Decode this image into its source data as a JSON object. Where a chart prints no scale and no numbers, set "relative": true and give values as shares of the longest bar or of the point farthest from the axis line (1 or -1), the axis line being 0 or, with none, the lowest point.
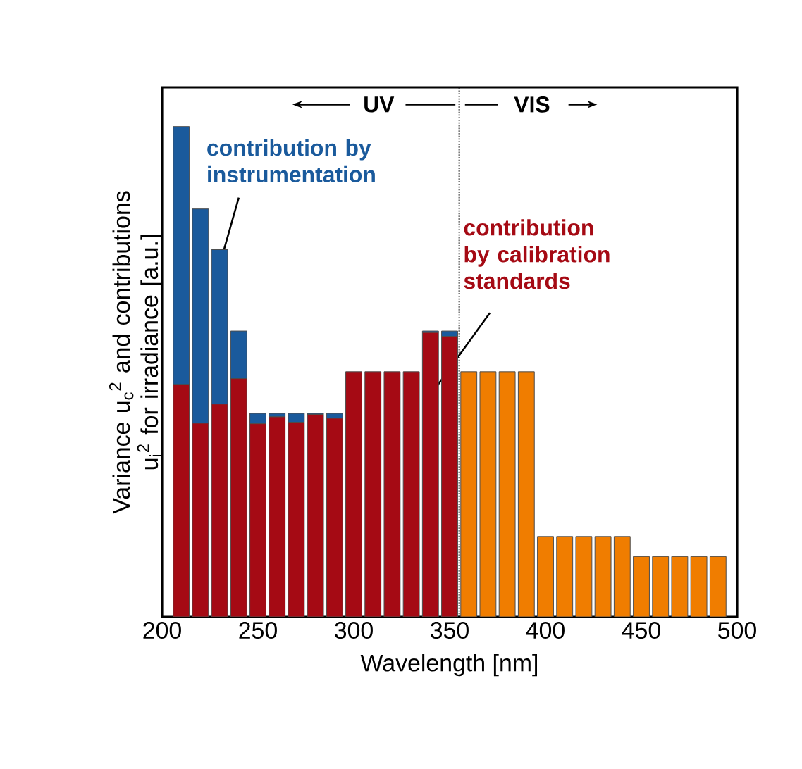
{
  "chart_data": {
    "type": "bar",
    "stacked": true,
    "relative": true,
    "xlabel": "Wavelength [nm]",
    "ylabel": "Variance u$_{c}$$^{2}$ and contributions u$_{i}$$^{2}$ for irradiance [a.u.]",
    "xlim": [
      200,
      500
    ],
    "xticks": [
      200,
      250,
      300,
      350,
      400,
      450,
      500
    ],
    "grid": false,
    "x": [
      210,
      220,
      230,
      240,
      250,
      260,
      270,
      280,
      290,
      300,
      310,
      320,
      330,
      340,
      350,
      360,
      370,
      380,
      390,
      400,
      410,
      420,
      430,
      440,
      450,
      460,
      470,
      480,
      490
    ],
    "series": [
      {
        "name": "contribution by calibration standards",
        "color": "#a50a14",
        "values": [
          0.474,
          0.395,
          0.434,
          0.486,
          0.394,
          0.408,
          0.397,
          0.413,
          0.405,
          0.5,
          0.5,
          0.5,
          0.5,
          0.58,
          0.572,
          null,
          null,
          null,
          null,
          null,
          null,
          null,
          null,
          null,
          null,
          null,
          null,
          null,
          null
        ]
      },
      {
        "name": "contribution by instrumentation",
        "color": "#1a5a9c",
        "values": [
          0.526,
          0.437,
          0.315,
          0.097,
          0.021,
          0.007,
          0.018,
          0.002,
          0.01,
          0,
          0,
          0,
          0,
          0.003,
          0.011,
          null,
          null,
          null,
          null,
          null,
          null,
          null,
          null,
          null,
          null,
          null,
          null,
          null,
          null
        ]
      },
      {
        "color": "#f07d00",
        "values": [
          null,
          null,
          null,
          null,
          null,
          null,
          null,
          null,
          null,
          null,
          null,
          null,
          null,
          null,
          null,
          0.5,
          0.5,
          0.5,
          0.5,
          0.164,
          0.164,
          0.164,
          0.164,
          0.164,
          0.123,
          0.123,
          0.123,
          0.123,
          0.123
        ]
      }
    ],
    "ref_lines": [
      {
        "axis": "x",
        "value": 355,
        "line_style": "dotted"
      }
    ],
    "annotations": [
      "UV",
      "VIS"
    ]
  }
}
